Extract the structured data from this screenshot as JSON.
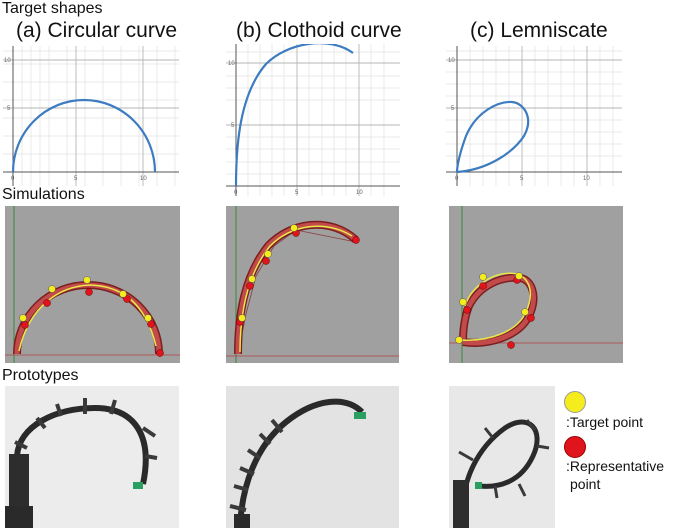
{
  "rows": {
    "target": "Target shapes",
    "sim": "Simulations",
    "proto": "Prototypes"
  },
  "columns": [
    {
      "label": "(a) Circular curve"
    },
    {
      "label": "(b) Clothoid curve"
    },
    {
      "label": "(c) Lemniscate"
    }
  ],
  "plots": {
    "circular": {
      "xticks": [
        "0",
        "5",
        "10"
      ],
      "yticks": [
        "5",
        "10"
      ]
    },
    "clothoid": {
      "xticks": [
        "0",
        "5",
        "10"
      ],
      "yticks": [
        "5",
        "10"
      ]
    },
    "lemniscate": {
      "xticks": [
        "0",
        "5",
        "10"
      ],
      "yticks": [
        "5",
        "10"
      ]
    }
  },
  "legend": {
    "target_text": ":Target point",
    "rep_text": ":Representative",
    "rep_text2": "point",
    "target_color": "#f4ec1c",
    "rep_color": "#e0141c"
  },
  "colors": {
    "curve": "#3d7cc0",
    "sim_bg": "#a0a0a0",
    "tube": "#c24a4a",
    "target_line": "#e8e84a"
  }
}
